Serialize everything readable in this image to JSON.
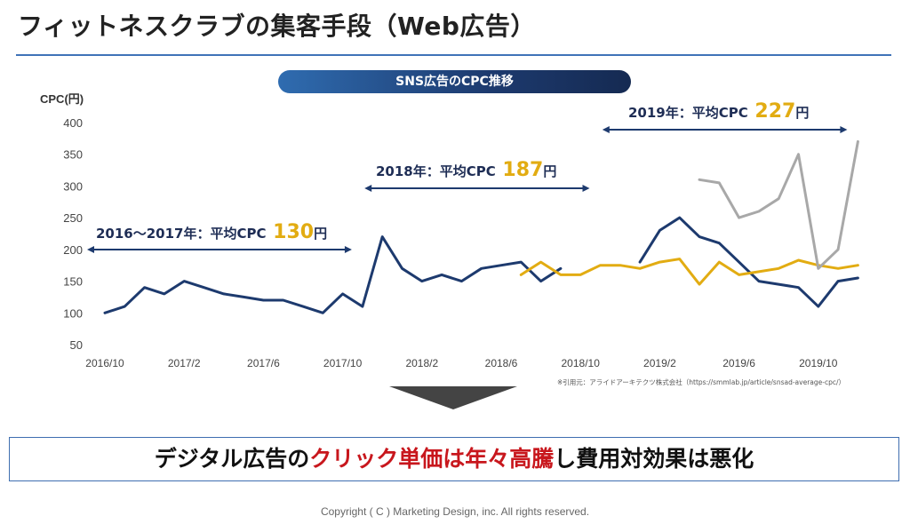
{
  "page_title": "フィットネスクラブの集客手段（Web広告）",
  "chart_title": "SNS広告のCPC推移",
  "source_note": "※引用元：アライドアーキテクツ株式会社（https://smmlab.jp/article/snsad-average-cpc/）",
  "conclusion": {
    "part1": "デジタル広告の",
    "part2": "クリック単価は年々高騰",
    "part3": "し費用対効果は悪化"
  },
  "copyright": "Copyright ( C ) Marketing Design, inc. All rights reserved.",
  "colors": {
    "navy": "#1d3a6e",
    "gold": "#e2ac12",
    "gray": "#a8a8a8",
    "red": "#c8171d",
    "accent": "#3f73b8"
  },
  "chart_data": {
    "type": "line",
    "ylabel": "CPC(円)",
    "ylim": [
      50,
      400
    ],
    "yticks": [
      50,
      100,
      150,
      200,
      250,
      300,
      350,
      400
    ],
    "xlabels": [
      "2016/10",
      "2017/2",
      "2017/6",
      "2017/10",
      "2018/2",
      "2018/6",
      "2018/10",
      "2019/2",
      "2019/6",
      "2019/10"
    ],
    "grid": false,
    "series": [
      {
        "color": "#1d3a6e",
        "segments": [
          [
            [
              "2016/10",
              100
            ],
            [
              "2016/11",
              110
            ],
            [
              "2016/12",
              140
            ],
            [
              "2017/1",
              130
            ],
            [
              "2017/2",
              150
            ],
            [
              "2017/3",
              140
            ],
            [
              "2017/4",
              130
            ],
            [
              "2017/5",
              125
            ],
            [
              "2017/6",
              120
            ],
            [
              "2017/7",
              120
            ],
            [
              "2017/8",
              110
            ],
            [
              "2017/9",
              100
            ],
            [
              "2017/10",
              130
            ],
            [
              "2017/11",
              110
            ],
            [
              "2017/12",
              220
            ],
            [
              "2018/1",
              170
            ],
            [
              "2018/2",
              150
            ],
            [
              "2018/3",
              160
            ],
            [
              "2018/4",
              150
            ],
            [
              "2018/5",
              170
            ],
            [
              "2018/6",
              175
            ],
            [
              "2018/7",
              180
            ],
            [
              "2018/8",
              150
            ],
            [
              "2018/9",
              170
            ]
          ],
          [
            [
              "2019/1",
              180
            ],
            [
              "2019/2",
              230
            ],
            [
              "2019/3",
              250
            ],
            [
              "2019/4",
              220
            ],
            [
              "2019/5",
              210
            ],
            [
              "2019/6",
              180
            ],
            [
              "2019/7",
              150
            ],
            [
              "2019/8",
              145
            ],
            [
              "2019/9",
              140
            ],
            [
              "2019/10",
              110
            ],
            [
              "2019/11",
              150
            ],
            [
              "2019/12",
              155
            ]
          ]
        ]
      },
      {
        "color": "#e2ac12",
        "segments": [
          [
            [
              "2018/7",
              160
            ],
            [
              "2018/8",
              180
            ],
            [
              "2018/9",
              160
            ],
            [
              "2018/10",
              160
            ],
            [
              "2018/11",
              175
            ],
            [
              "2018/12",
              175
            ],
            [
              "2019/1",
              170
            ],
            [
              "2019/2",
              180
            ],
            [
              "2019/3",
              185
            ],
            [
              "2019/4",
              145
            ],
            [
              "2019/5",
              180
            ],
            [
              "2019/6",
              160
            ],
            [
              "2019/7",
              165
            ],
            [
              "2019/8",
              170
            ],
            [
              "2019/9",
              183
            ],
            [
              "2019/10",
              175
            ],
            [
              "2019/11",
              170
            ],
            [
              "2019/12",
              175
            ]
          ]
        ]
      },
      {
        "color": "#a8a8a8",
        "segments": [
          [
            [
              "2019/4",
              310
            ],
            [
              "2019/5",
              305
            ],
            [
              "2019/6",
              250
            ],
            [
              "2019/7",
              260
            ],
            [
              "2019/8",
              280
            ],
            [
              "2019/9",
              350
            ],
            [
              "2019/10",
              170
            ],
            [
              "2019/11",
              200
            ],
            [
              "2019/12",
              370
            ]
          ]
        ]
      }
    ],
    "annotations": [
      {
        "label": "2016〜2017年：平均CPC",
        "value": "130",
        "unit": "円",
        "range": [
          "2016/10",
          "2017/11"
        ]
      },
      {
        "label": "2018年：平均CPC",
        "value": "187",
        "unit": "円",
        "range": [
          "2017/12",
          "2018/11"
        ]
      },
      {
        "label": "2019年：平均CPC",
        "value": "227",
        "unit": "円",
        "range": [
          "2018/12",
          "2019/12"
        ]
      }
    ]
  }
}
